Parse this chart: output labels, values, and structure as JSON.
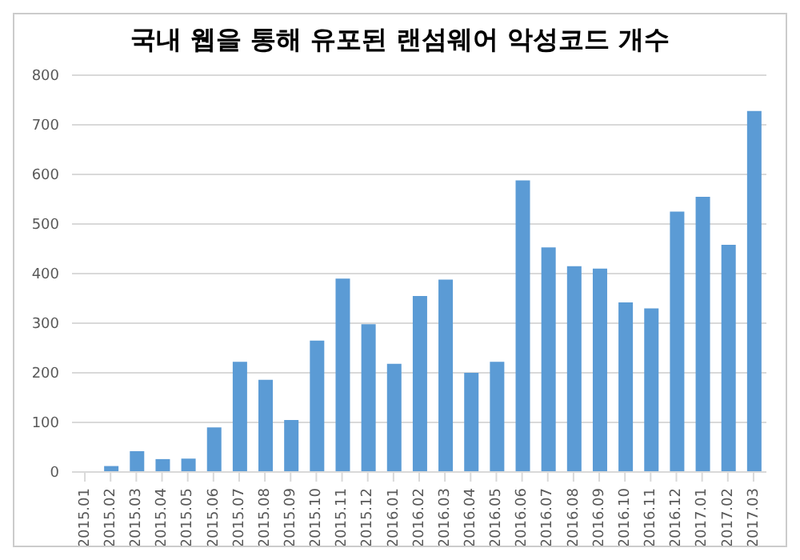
{
  "chart_data": {
    "type": "bar",
    "title": "국내 웹을 통해 유포된 랜섬웨어 악성코드 개수",
    "categories": [
      "2015.01",
      "2015.02",
      "2015.03",
      "2015.04",
      "2015.05",
      "2015.06",
      "2015.07",
      "2015.08",
      "2015.09",
      "2015.10",
      "2015.11",
      "2015.12",
      "2016.01",
      "2016.02",
      "2016.03",
      "2016.04",
      "2016.05",
      "2016.06",
      "2016.07",
      "2016.08",
      "2016.09",
      "2016.10",
      "2016.11",
      "2016.12",
      "2017.01",
      "2017.02",
      "2017.03"
    ],
    "values": [
      0,
      12,
      42,
      26,
      27,
      90,
      222,
      186,
      105,
      265,
      390,
      298,
      218,
      355,
      388,
      200,
      222,
      588,
      453,
      415,
      410,
      342,
      330,
      525,
      555,
      458,
      728
    ],
    "color": "#5b9bd5",
    "ylim": [
      0,
      800
    ],
    "yticks": [
      0,
      100,
      200,
      300,
      400,
      500,
      600,
      700,
      800
    ],
    "grid": "y"
  }
}
